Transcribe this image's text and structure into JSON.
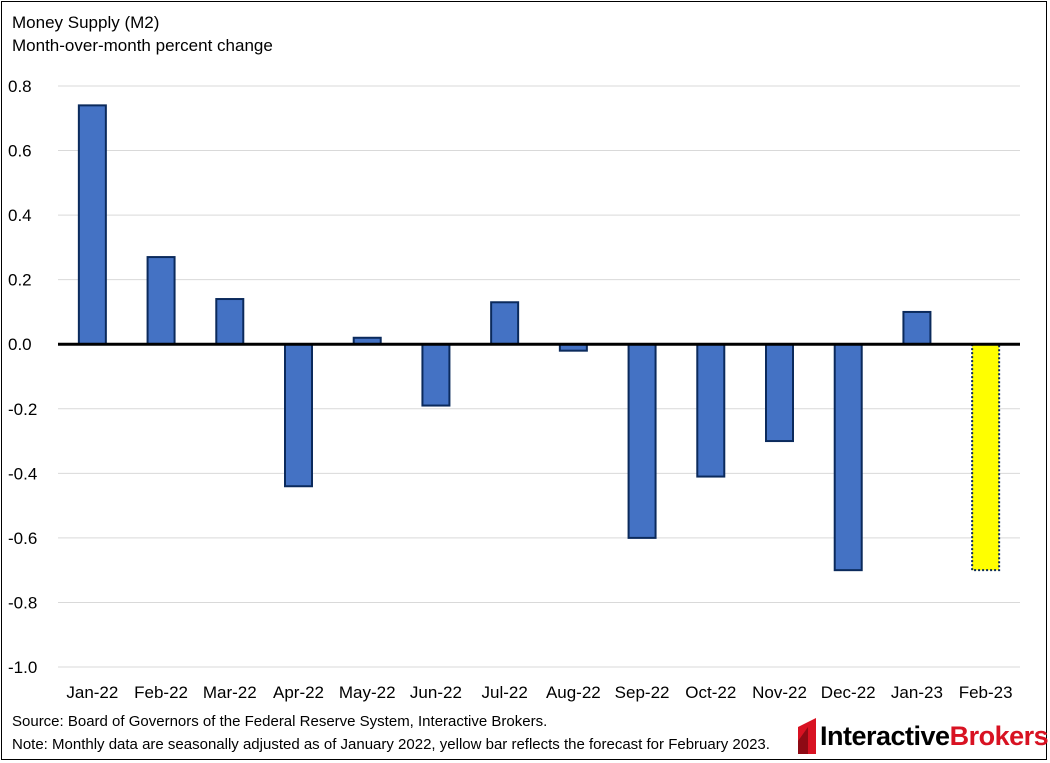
{
  "chart_data": {
    "type": "bar",
    "title": "Money Supply (M2)",
    "subtitle": "Month-over-month percent change",
    "categories": [
      "Jan-22",
      "Feb-22",
      "Mar-22",
      "Apr-22",
      "May-22",
      "Jun-22",
      "Jul-22",
      "Aug-22",
      "Sep-22",
      "Oct-22",
      "Nov-22",
      "Dec-22",
      "Jan-23",
      "Feb-23"
    ],
    "values": [
      0.74,
      0.27,
      0.14,
      -0.44,
      0.02,
      -0.19,
      0.13,
      -0.02,
      -0.6,
      -0.41,
      -0.3,
      -0.7,
      0.1,
      -0.7
    ],
    "forecast": [
      false,
      false,
      false,
      false,
      false,
      false,
      false,
      false,
      false,
      false,
      false,
      false,
      false,
      true
    ],
    "ylim": [
      -1.0,
      0.8
    ],
    "yticks": [
      0.8,
      0.6,
      0.4,
      0.2,
      0.0,
      -0.2,
      -0.4,
      -0.6,
      -0.8,
      -1.0
    ],
    "ytick_labels": [
      "0.8",
      "0.6",
      "0.4",
      "0.2",
      "0.0",
      "-0.2",
      "-0.4",
      "-0.6",
      "-0.8",
      "-1.0"
    ],
    "xlabel": "",
    "ylabel": "",
    "grid": true,
    "colors": {
      "bar": "#4472c4",
      "bar_edge": "#0b2a5c",
      "forecast_bar": "#ffff00",
      "grid": "#d9d9d9",
      "zero_line": "#000000"
    }
  },
  "footer": {
    "source": "Source: Board of Governors of the Federal Reserve System, Interactive Brokers.",
    "note": "Note: Monthly data are seasonally adjusted as of January 2022, yellow bar reflects the forecast for February 2023.",
    "logo_part1": "Interactive",
    "logo_part2": "Brokers",
    "logo_icon": "interactive-brokers-logo-icon"
  }
}
